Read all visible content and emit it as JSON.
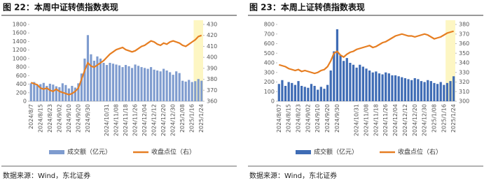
{
  "chart_data": [
    {
      "type": "bar-line",
      "title": "图 22：本周中证转债指数表现",
      "source": "数据来源：Wind，东北证券",
      "categories": [
        "2024/8/7",
        null,
        null,
        "2024/8/15",
        null,
        null,
        "2024/8/23",
        null,
        null,
        "2024/9/02",
        null,
        null,
        "2024/9/10",
        null,
        null,
        "2024/9/20",
        null,
        null,
        "2024/9/30",
        null,
        null,
        null,
        null,
        null,
        "2024/10/31",
        null,
        null,
        "2024/11/08",
        null,
        null,
        "2024/11/18",
        null,
        null,
        "2024/11/26",
        null,
        null,
        "2024/12/04",
        null,
        null,
        "2024/12/12",
        null,
        null,
        "2024/12/20",
        null,
        null,
        "2024/12/30",
        null,
        null,
        "2025/1/08",
        null,
        null,
        "2025/1/16",
        null,
        null,
        "2025/1/24"
      ],
      "series": [
        {
          "name": "成交额（亿元）",
          "color": "#7f9ccf",
          "values": [
            420,
            450,
            380,
            400,
            430,
            360,
            410,
            390,
            350,
            330,
            420,
            380,
            300,
            360,
            320,
            420,
            650,
            1000,
            1550,
            1100,
            950,
            1050,
            1000,
            900,
            850,
            900,
            880,
            860,
            840,
            800,
            850,
            820,
            780,
            860,
            830,
            800,
            780,
            760,
            800,
            740,
            720,
            700,
            760,
            720,
            680,
            620,
            700,
            660,
            480,
            460,
            500,
            450,
            470,
            520,
            480
          ]
        },
        {
          "name": "收盘点位（右）",
          "color": "#e67e22",
          "axis": "y2",
          "values": [
            377,
            376,
            375,
            372,
            371,
            372,
            370,
            369,
            371,
            369,
            368,
            367,
            366,
            367,
            369,
            372,
            380,
            388,
            395,
            392,
            391,
            393,
            395,
            397,
            400,
            403,
            405,
            407,
            408,
            409,
            407,
            406,
            405,
            406,
            408,
            410,
            411,
            413,
            415,
            414,
            412,
            411,
            413,
            412,
            414,
            415,
            414,
            413,
            411,
            410,
            412,
            414,
            416,
            419,
            420
          ]
        }
      ],
      "ylim": [
        0,
        1800
      ],
      "yticks": [
        0,
        200,
        400,
        600,
        800,
        1000,
        1200,
        1400,
        1600,
        1800
      ],
      "y2lim": [
        360,
        430
      ],
      "y2ticks": [
        360,
        370,
        380,
        390,
        400,
        410,
        420,
        430
      ],
      "grid": false
    },
    {
      "type": "bar-line",
      "title": "图 23：本周上证转债指数表现",
      "source": "数据来源：Wind，东北证券",
      "categories": [
        "2024/8/07",
        null,
        null,
        "2024/8/15",
        null,
        null,
        "2024/8/23",
        null,
        null,
        "2024/9/02",
        null,
        null,
        "2024/9/10",
        null,
        null,
        "2024/9/20",
        null,
        null,
        "2024/9/30",
        null,
        null,
        null,
        null,
        null,
        "2024/10/31",
        null,
        null,
        "2024/11/08",
        null,
        null,
        "2024/11/18",
        null,
        null,
        "2024/11/26",
        null,
        null,
        "2024/12/04",
        null,
        null,
        "2024/12/12",
        null,
        null,
        "2024/12/20",
        null,
        null,
        "2024/12/30",
        null,
        null,
        "2025/1/08",
        null,
        null,
        "2025/1/16",
        null,
        null,
        "2025/1/24"
      ],
      "series": [
        {
          "name": "成交额（亿元）",
          "color": "#3f6cb5",
          "values": [
            180,
            220,
            160,
            200,
            190,
            170,
            210,
            160,
            150,
            140,
            180,
            160,
            120,
            150,
            130,
            170,
            320,
            520,
            750,
            480,
            420,
            450,
            400,
            380,
            350,
            380,
            360,
            340,
            320,
            300,
            310,
            290,
            280,
            300,
            290,
            270,
            270,
            260,
            250,
            240,
            230,
            220,
            240,
            230,
            210,
            200,
            220,
            210,
            190,
            180,
            200,
            170,
            190,
            210,
            260
          ]
        },
        {
          "name": "收盘点位（右）",
          "color": "#e67e22",
          "axis": "y2",
          "values": [
            338,
            337,
            336,
            334,
            333,
            332,
            333,
            331,
            332,
            331,
            330,
            329,
            330,
            332,
            333,
            336,
            342,
            350,
            352,
            348,
            346,
            349,
            351,
            352,
            354,
            355,
            356,
            357,
            358,
            356,
            357,
            359,
            361,
            362,
            364,
            366,
            368,
            369,
            370,
            369,
            368,
            368,
            367,
            368,
            369,
            370,
            369,
            367,
            365,
            366,
            367,
            369,
            371,
            372,
            373
          ]
        }
      ],
      "ylim": [
        0,
        800
      ],
      "yticks": [
        0,
        100,
        200,
        300,
        400,
        500,
        600,
        700,
        800
      ],
      "y2lim": [
        300,
        380
      ],
      "y2ticks": [
        300,
        310,
        320,
        330,
        340,
        350,
        360,
        370,
        380
      ],
      "grid": false
    }
  ]
}
